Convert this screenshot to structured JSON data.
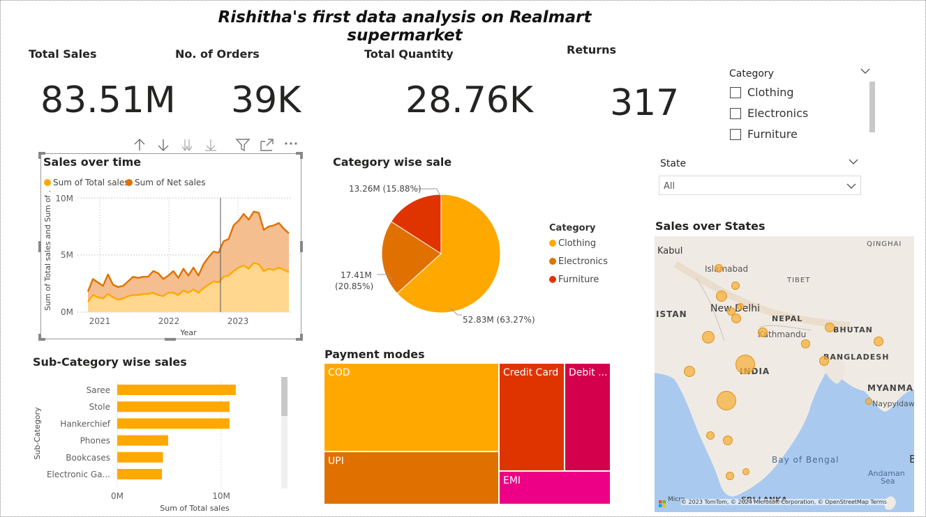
{
  "title": "Rishitha's first data analysis on Realmart supermarket",
  "kpis": {
    "total_sales": {
      "label": "Total Sales",
      "value": "83.51M"
    },
    "orders": {
      "label": "No. of Orders",
      "value": "39K"
    },
    "quantity": {
      "label": "Total Quantity",
      "value": "28.76K"
    },
    "returns": {
      "label": "Returns",
      "value": "317"
    }
  },
  "category_slicer": {
    "header": "Category",
    "options": [
      "Clothing",
      "Electronics",
      "Furniture"
    ]
  },
  "state_slicer": {
    "header": "State",
    "value": "All"
  },
  "colors": {
    "clothing": "#FFA800",
    "electronics": "#E07100",
    "furniture": "#E03400",
    "credit": "#E03400",
    "debit": "#D4004B",
    "emi": "#EE0086",
    "sales_total": "#FFD78E",
    "sales_net": "#F4BE8F"
  },
  "visual_toolbar": {
    "icons": [
      "arrow-up-icon",
      "arrow-down-icon",
      "double-arrow-down-icon",
      "expand-hierarchy-icon",
      "filter-icon",
      "focus-mode-icon",
      "more-options-icon"
    ]
  },
  "sales_over_time": {
    "title": "Sales over time",
    "legend": [
      "Sum of Total sales",
      "Sum of Net sales"
    ],
    "y_title": "Sum of Total sales and Sum of ...",
    "x_title": "Year",
    "y_ticks": [
      "10M",
      "5M",
      "0M"
    ],
    "x_ticks": [
      "2021",
      "2022",
      "2023"
    ]
  },
  "category_sale": {
    "title": "Category wise sale",
    "legend_title": "Category",
    "legend": [
      "Clothing",
      "Electronics",
      "Furniture"
    ],
    "labels": {
      "clothing": "52.83M (63.27%)",
      "electronics_a": "17.41M",
      "electronics_b": "(20.85%)",
      "furniture": "13.26M (15.88%)"
    }
  },
  "subcategory": {
    "title": "Sub-Category wise sales",
    "y_title": "Sub-Category",
    "x_title": "Sum of Total sales",
    "x_ticks": [
      "0M",
      "10M"
    ]
  },
  "payment": {
    "title": "Payment modes",
    "cells": {
      "cod": "COD",
      "upi": "UPI",
      "credit": "Credit Card",
      "debit": "Debit ...",
      "emi": "EMI"
    }
  },
  "map": {
    "title": "Sales over States",
    "labels": {
      "kabul": "Kabul",
      "islamabad": "Islamabad",
      "qinghai": "QINGHAI",
      "tibet": "TIBET",
      "istan": "ISTAN",
      "new_delhi": "New Delhi",
      "nepal": "NEPAL",
      "kathmandu": "Kathmandu",
      "bhutan": "BHUTAN",
      "bangladesh": "BANGLADESH",
      "india": "INDIA",
      "myanmar": "MYANMA",
      "naypyidaw": "Naypyidaw",
      "bay_of_bengal": "Bay of Bengal",
      "andaman_a": "Andaman",
      "andaman_b": "Sea",
      "sri_lanka": "SRI LANKA",
      "b": "B",
      "attribution": "© 2023 TomTom, © 2024 Microsoft Corporation, © OpenStreetMap  Terms",
      "brand": "Micro"
    }
  },
  "chart_data": [
    {
      "type": "area",
      "title": "Sales over time",
      "xlabel": "Year",
      "ylabel": "Sum of Total sales and Sum of ...",
      "ylim": [
        0,
        10000000
      ],
      "x_ticks": [
        "2021",
        "2022",
        "2023"
      ],
      "grid": true,
      "legend_position": "top-left",
      "series": [
        {
          "name": "Sum of Net sales",
          "values": [
            1800000,
            2900000,
            2600000,
            2300000,
            3300000,
            2400000,
            2200000,
            2300000,
            2700000,
            3100000,
            3000000,
            3100000,
            3100000,
            3600000,
            3400000,
            2900000,
            3200000,
            3600000,
            3000000,
            3800000,
            3200000,
            3900000,
            3200000,
            4200000,
            4800000,
            5300000,
            5200000,
            6200000,
            6400000,
            7600000,
            8000000,
            8600000,
            8100000,
            8800000,
            8700000,
            7200000,
            7500000,
            7600000,
            7800000,
            7300000,
            6900000
          ]
        },
        {
          "name": "Sum of Total sales",
          "values": [
            900000,
            1500000,
            1300000,
            1200000,
            1600000,
            1300000,
            1100000,
            1200000,
            1400000,
            1500000,
            1500000,
            1600000,
            1600000,
            1700000,
            1500000,
            1400000,
            1700000,
            1700000,
            1500000,
            1900000,
            1700000,
            2000000,
            1700000,
            2100000,
            2400000,
            2700000,
            2600000,
            3100000,
            3200000,
            3600000,
            3900000,
            4100000,
            3800000,
            4300000,
            4200000,
            3600000,
            3800000,
            3700000,
            3900000,
            3700000,
            3500000
          ]
        }
      ]
    },
    {
      "type": "pie",
      "title": "Category wise sale",
      "categories": [
        "Clothing",
        "Electronics",
        "Furniture"
      ],
      "values": [
        52.83,
        17.41,
        13.26
      ],
      "percentages": [
        63.27,
        20.85,
        15.88
      ],
      "legend_position": "right"
    },
    {
      "type": "bar",
      "title": "Sub-Category wise sales",
      "orientation": "horizontal",
      "categories": [
        "Saree",
        "Stole",
        "Hankerchief",
        "Phones",
        "Bookcases",
        "Electronic Ga..."
      ],
      "values": [
        11400000,
        10800000,
        10800000,
        4900000,
        4400000,
        4300000
      ],
      "xlabel": "Sum of Total sales",
      "ylabel": "Sub-Category",
      "xlim": [
        0,
        16000000
      ]
    },
    {
      "type": "treemap",
      "title": "Payment modes",
      "categories": [
        "COD",
        "UPI",
        "Credit Card",
        "Debit ...",
        "EMI"
      ],
      "values": [
        38,
        22,
        15,
        12,
        9
      ]
    }
  ]
}
